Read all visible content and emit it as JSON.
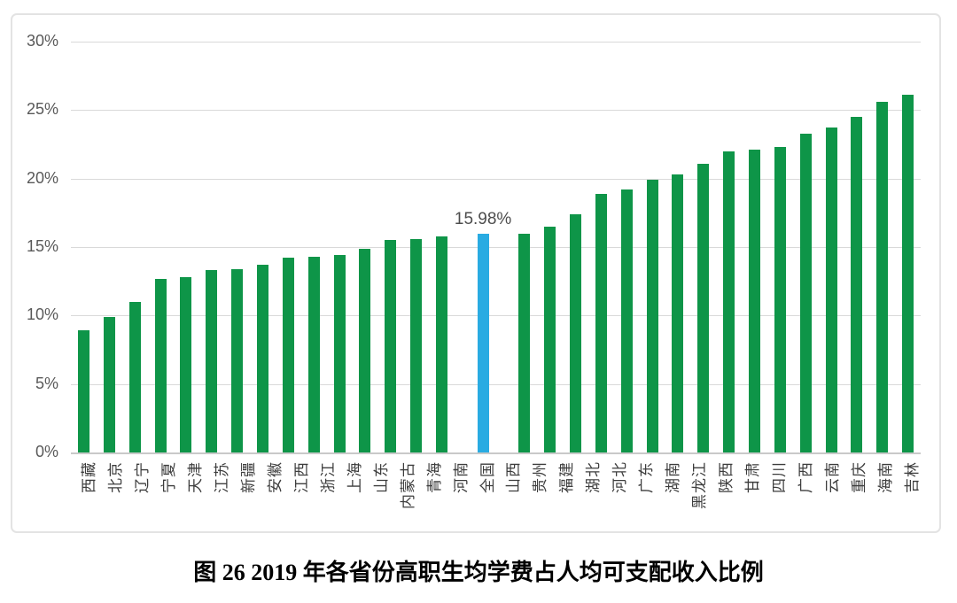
{
  "figure": {
    "caption": "图 26  2019 年各省份高职生均学费占人均可支配收入比例"
  },
  "chart_data": {
    "type": "bar",
    "title": "图 26 2019 年各省份高职生均学费占人均可支配收入比例",
    "xlabel": "",
    "ylabel": "",
    "ylim": [
      0,
      30
    ],
    "grid": true,
    "legend": false,
    "yticks": [
      {
        "label": "30%",
        "value": 30
      },
      {
        "label": "25%",
        "value": 25
      },
      {
        "label": "20%",
        "value": 20
      },
      {
        "label": "15%",
        "value": 15
      },
      {
        "label": "10%",
        "value": 10
      },
      {
        "label": "5%",
        "value": 5
      },
      {
        "label": "0%",
        "value": 0
      }
    ],
    "categories": [
      "西藏",
      "北京",
      "辽宁",
      "宁夏",
      "天津",
      "江苏",
      "新疆",
      "安徽",
      "江西",
      "浙江",
      "上海",
      "山东",
      "内蒙古",
      "青海",
      "河南",
      "全国",
      "山西",
      "贵州",
      "福建",
      "湖北",
      "河北",
      "广东",
      "湖南",
      "黑龙江",
      "陕西",
      "甘肃",
      "四川",
      "广西",
      "云南",
      "重庆",
      "海南",
      "吉林"
    ],
    "values": [
      8.9,
      9.9,
      11.0,
      12.7,
      12.8,
      13.3,
      13.4,
      13.7,
      14.2,
      14.3,
      14.4,
      14.9,
      15.5,
      15.6,
      15.8,
      15.98,
      16.0,
      16.5,
      17.4,
      18.9,
      19.2,
      19.9,
      20.3,
      21.1,
      22.0,
      22.1,
      22.3,
      23.3,
      23.7,
      24.5,
      25.6,
      26.1
    ],
    "bar_color": "#0e9548",
    "highlight": {
      "category": "全国",
      "index": 15,
      "color": "#29abe2",
      "label": "15.98%",
      "value": 15.98
    }
  },
  "colors": {
    "grid": "#d9d9d9",
    "axis_line": "#c9c9c9",
    "tick_text": "#595959",
    "category_text": "#3d3d3d",
    "frame_border": "#e3e3e3",
    "background": "#ffffff"
  }
}
